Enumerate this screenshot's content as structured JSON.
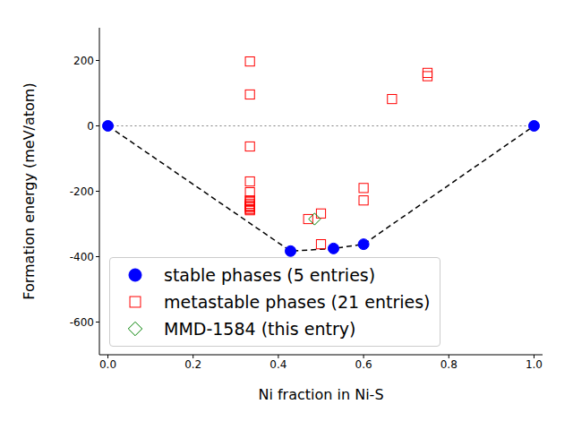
{
  "chart_data": {
    "type": "scatter",
    "xlabel": "Ni fraction in Ni-S",
    "ylabel": "Formation energy (meV/atom)",
    "xlim": [
      -0.02,
      1.02
    ],
    "xticks": [
      {
        "value": 0,
        "label": "0.0"
      },
      {
        "value": 0.2,
        "label": "0.2"
      },
      {
        "value": 0.4,
        "label": "0.4"
      },
      {
        "value": 0.6,
        "label": "0.6"
      },
      {
        "value": 0.8,
        "label": "0.8"
      },
      {
        "value": 1,
        "label": "1.0"
      }
    ],
    "ylim": [
      -700,
      300
    ],
    "yticks": [
      -600,
      -400,
      -200,
      0,
      200
    ],
    "grid": false,
    "legend": "lower left",
    "series": [
      {
        "name": "stable phases (5 entries)",
        "color": "#0000ff",
        "marker": "circle",
        "line_style": "dashed",
        "x": [
          0,
          0.4286,
          0.5294,
          0.6,
          1
        ],
        "values": [
          0,
          -383,
          -375,
          -362,
          0
        ]
      },
      {
        "name": "metastable phases (21 entries)",
        "color": "#ff0000",
        "marker": "open_square",
        "x": [
          0.3333,
          0.3333,
          0.3333,
          0.3333,
          0.3333,
          0.3333,
          0.3333,
          0.3333,
          0.3333,
          0.3333,
          0.3333,
          0.3333,
          0.3333,
          0.47,
          0.5,
          0.5,
          0.6,
          0.6,
          0.6667,
          0.75,
          0.75
        ],
        "values": [
          197,
          96,
          -63,
          -170,
          -203,
          -228,
          -232,
          -238,
          -243,
          -246,
          -250,
          -255,
          -258,
          -285,
          -268,
          -362,
          -190,
          -228,
          82,
          162,
          152
        ]
      },
      {
        "name": "MMD-1584 (this entry)",
        "color": "#008000",
        "marker": "open_diamond",
        "x": [
          0.485
        ],
        "values": [
          -285
        ]
      }
    ]
  }
}
